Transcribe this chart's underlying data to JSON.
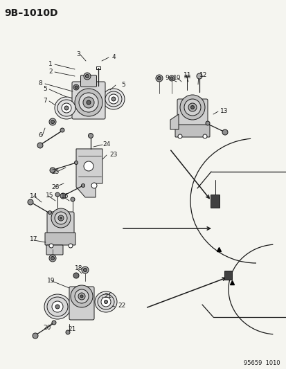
{
  "title": "9B–1010D",
  "footer": "95659  1010",
  "bg_color": "#f5f5f0",
  "text_color": "#1a1a1a",
  "title_fontsize": 10,
  "footer_fontsize": 6,
  "label_fontsize": 6.5
}
